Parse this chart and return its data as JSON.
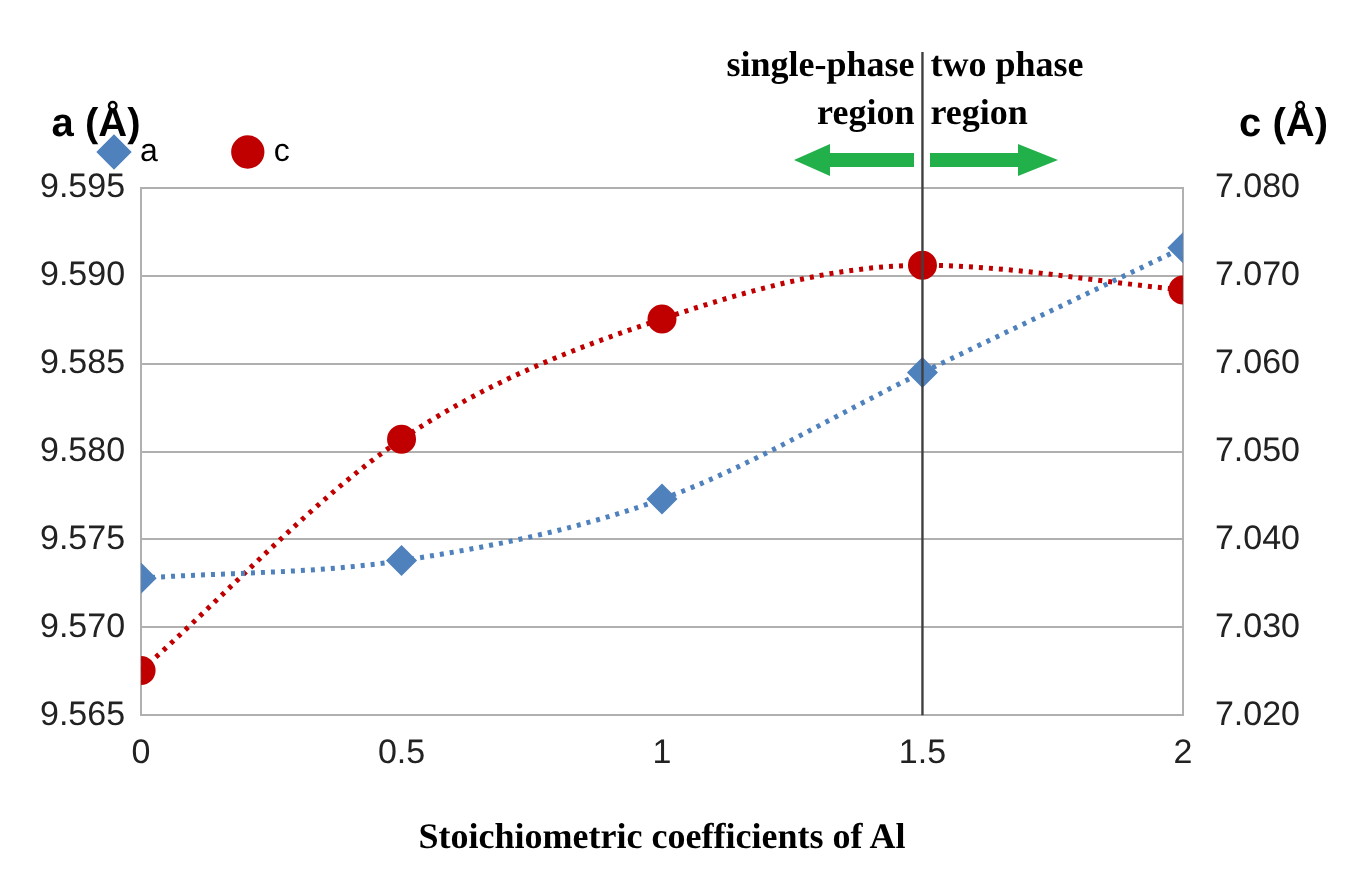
{
  "chart_data": {
    "type": "line",
    "xlabel": "Stoichiometric coefficients of Al",
    "ylabel": "a (Å)",
    "y2label": "c (Å)",
    "x": [
      0,
      0.5,
      1,
      1.5,
      2
    ],
    "series": [
      {
        "name": "a",
        "color": "#4f81bd",
        "marker": "diamond",
        "values": [
          9.5728,
          9.5738,
          9.5773,
          9.5845,
          9.5916
        ]
      },
      {
        "name": "c",
        "color": "#c00000",
        "marker": "circle",
        "axis": "y2",
        "values": [
          7.0251,
          7.0514,
          7.0651,
          7.0712,
          7.0684
        ]
      }
    ],
    "xlim": [
      0,
      2
    ],
    "xticks": [
      0,
      0.5,
      1,
      1.5,
      2
    ],
    "ylim": [
      9.565,
      9.595
    ],
    "yticks": [
      9.565,
      {
        "value": 9.57,
        "label": "9.570"
      },
      9.575,
      {
        "value": 9.58,
        "label": "9.580"
      },
      9.585,
      {
        "value": 9.59,
        "label": "9.590"
      },
      9.595
    ],
    "y2lim": [
      7.02,
      7.08
    ],
    "y2ticks": [
      {
        "value": 7.02,
        "label": "7.020"
      },
      {
        "value": 7.03,
        "label": "7.030"
      },
      {
        "value": 7.04,
        "label": "7.040"
      },
      {
        "value": 7.05,
        "label": "7.050"
      },
      {
        "value": 7.06,
        "label": "7.060"
      },
      {
        "value": 7.07,
        "label": "7.070"
      },
      {
        "value": 7.08,
        "label": "7.080"
      }
    ],
    "ref_lines": [
      {
        "axis": "x",
        "value": 1.5,
        "color": "#404040"
      }
    ],
    "annotations": [
      "single-phase\nregion",
      "two phase\nregion"
    ],
    "grid": "y",
    "legend": "top left",
    "line_style": "dotted"
  }
}
